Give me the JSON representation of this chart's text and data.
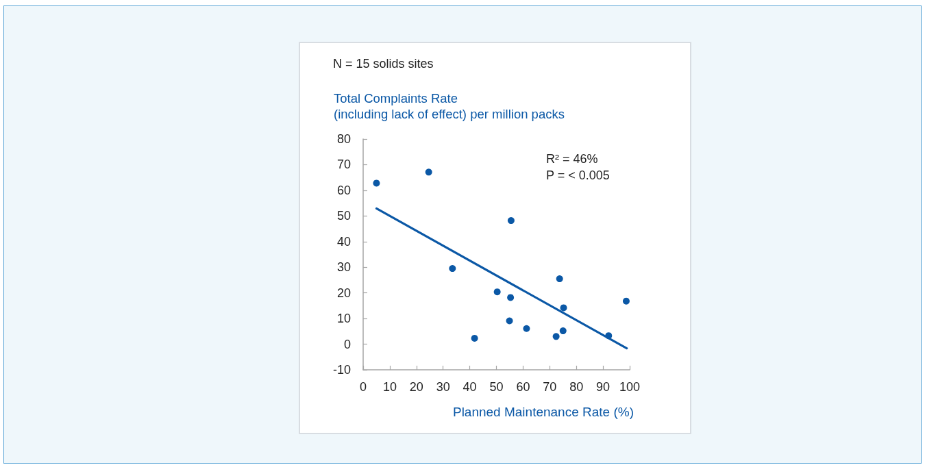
{
  "chart_data": {
    "type": "scatter",
    "title": "N = 15 solids sites",
    "xlabel": "Planned Maintenance Rate (%)",
    "ylabel": "Total Complaints Rate\n(including lack of effect) per million packs",
    "annotations": [
      "R² = 46%",
      "P = < 0.005"
    ],
    "xlim": [
      0,
      100
    ],
    "xticks": [
      0,
      10,
      20,
      30,
      40,
      50,
      60,
      70,
      80,
      90,
      100
    ],
    "ylim": [
      -10,
      80
    ],
    "yticks": [
      -10,
      0,
      10,
      20,
      30,
      40,
      50,
      60,
      70,
      80
    ],
    "series": [
      {
        "type": "scatter",
        "color": "#0b58a6",
        "marker": "circle",
        "x": [
          5.0,
          24.6,
          55.5,
          33.5,
          50.3,
          55.3,
          54.9,
          41.8,
          73.7,
          75.2,
          98.7,
          61.3,
          75.0,
          72.4,
          92.1
        ],
        "values": [
          62.8,
          67.1,
          48.2,
          29.5,
          20.4,
          18.2,
          9.1,
          2.3,
          25.5,
          14.2,
          16.8,
          6.1,
          5.2,
          3.0,
          3.3
        ]
      },
      {
        "type": "line",
        "color": "#0b58a6",
        "marker": "none",
        "line_style": "solid",
        "x": [
          5.0,
          98.9
        ],
        "values": [
          52.9,
          -1.6
        ]
      }
    ]
  }
}
